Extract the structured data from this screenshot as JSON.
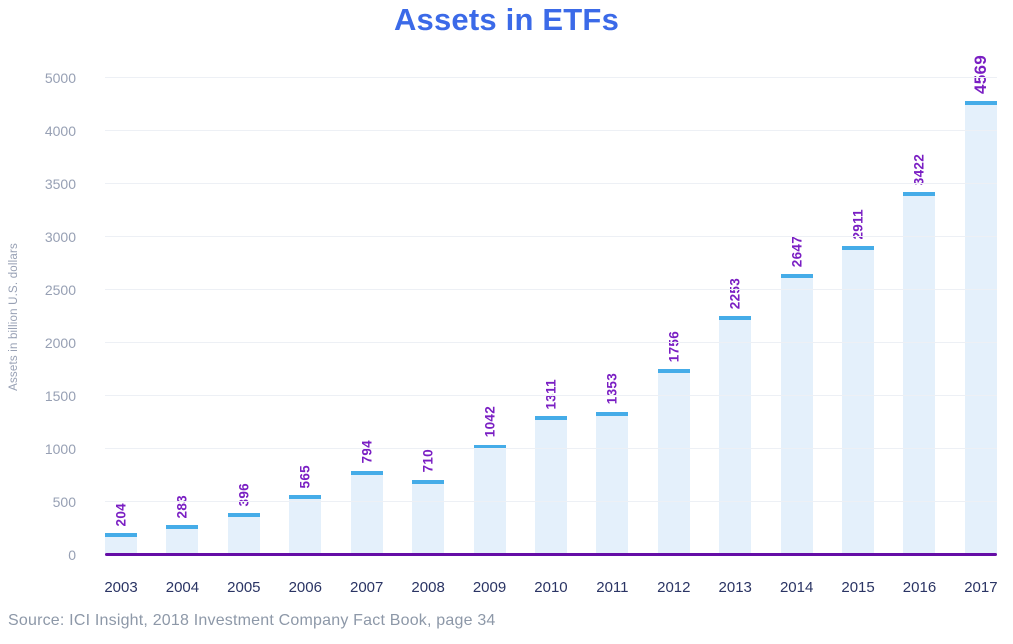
{
  "chart": {
    "title": "Assets in ETFs",
    "ylabel": "Assets in billion U.S. dollars",
    "source": "Source: ICI Insight, 2018 Investment Company Fact Book, page 34"
  },
  "chart_data": {
    "type": "bar",
    "title": "Assets in ETFs",
    "xlabel": "",
    "ylabel": "Assets in billion U.S. dollars",
    "categories": [
      "2003",
      "2004",
      "2005",
      "2006",
      "2007",
      "2008",
      "2009",
      "2010",
      "2011",
      "2012",
      "2013",
      "2014",
      "2015",
      "2016",
      "2017"
    ],
    "values": [
      204,
      283,
      396,
      565,
      794,
      710,
      1042,
      1311,
      1353,
      1756,
      2253,
      2647,
      2911,
      3422,
      4569
    ],
    "yticks": [
      0,
      500,
      1000,
      1500,
      2000,
      2500,
      3000,
      3500,
      4000,
      5000
    ],
    "ylim": [
      0,
      5000
    ],
    "axis_note": "ticks evenly spaced; final interval 4000-5000 spans one tick step",
    "grid": "horizontal",
    "legend": "none",
    "value_labels": "rotated 90deg above bars",
    "highlight_last_value": true,
    "colors": {
      "title": "#3b6ae8",
      "bar_fill": "#e4f0fb",
      "bar_cap": "#45ace8",
      "value_label": "#7a1ec3",
      "axis_line": "#650da6",
      "x_label": "#2a3464",
      "y_label": "#97a0b4",
      "gridline": "#edf0f5",
      "source_text": "#8d98a8"
    }
  }
}
